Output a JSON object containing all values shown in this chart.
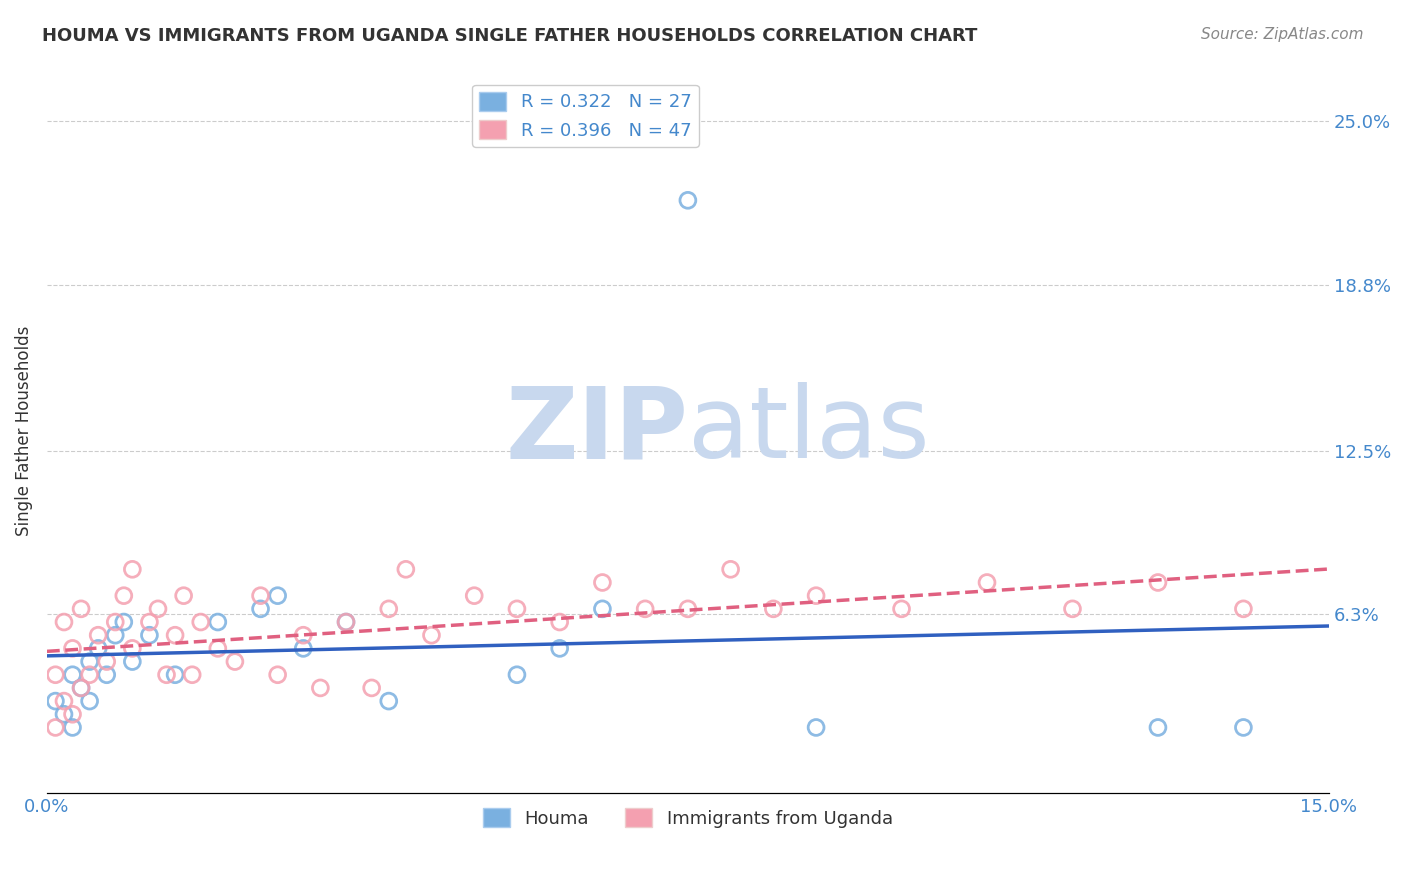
{
  "title": "HOUMA VS IMMIGRANTS FROM UGANDA SINGLE FATHER HOUSEHOLDS CORRELATION CHART",
  "source": "Source: ZipAtlas.com",
  "ylabel": "Single Father Households",
  "ytick_labels": [
    "25.0%",
    "18.8%",
    "12.5%",
    "6.3%"
  ],
  "ytick_values": [
    0.25,
    0.188,
    0.125,
    0.063
  ],
  "xlim": [
    0.0,
    0.15
  ],
  "ylim": [
    -0.005,
    0.27
  ],
  "houma_color": "#7ab0e0",
  "uganda_color": "#f4a0b0",
  "houma_line_color": "#3060c0",
  "uganda_line_color": "#e06080",
  "legend_houma_R": "R = 0.322",
  "legend_houma_N": "N = 27",
  "legend_uganda_R": "R = 0.396",
  "legend_uganda_N": "N = 47",
  "houma_scatter_x": [
    0.001,
    0.002,
    0.003,
    0.003,
    0.004,
    0.005,
    0.005,
    0.006,
    0.007,
    0.008,
    0.009,
    0.01,
    0.012,
    0.015,
    0.02,
    0.025,
    0.027,
    0.03,
    0.035,
    0.04,
    0.055,
    0.06,
    0.065,
    0.075,
    0.09,
    0.13,
    0.14
  ],
  "houma_scatter_y": [
    0.03,
    0.025,
    0.02,
    0.04,
    0.035,
    0.03,
    0.045,
    0.05,
    0.04,
    0.055,
    0.06,
    0.045,
    0.055,
    0.04,
    0.06,
    0.065,
    0.07,
    0.05,
    0.06,
    0.03,
    0.04,
    0.05,
    0.065,
    0.22,
    0.02,
    0.02,
    0.02
  ],
  "uganda_scatter_x": [
    0.001,
    0.001,
    0.002,
    0.002,
    0.003,
    0.003,
    0.004,
    0.004,
    0.005,
    0.006,
    0.007,
    0.008,
    0.009,
    0.01,
    0.01,
    0.012,
    0.013,
    0.014,
    0.015,
    0.016,
    0.017,
    0.018,
    0.02,
    0.022,
    0.025,
    0.027,
    0.03,
    0.032,
    0.035,
    0.038,
    0.04,
    0.042,
    0.045,
    0.05,
    0.055,
    0.06,
    0.065,
    0.07,
    0.075,
    0.08,
    0.085,
    0.09,
    0.1,
    0.11,
    0.12,
    0.13,
    0.14
  ],
  "uganda_scatter_y": [
    0.02,
    0.04,
    0.03,
    0.06,
    0.025,
    0.05,
    0.035,
    0.065,
    0.04,
    0.055,
    0.045,
    0.06,
    0.07,
    0.05,
    0.08,
    0.06,
    0.065,
    0.04,
    0.055,
    0.07,
    0.04,
    0.06,
    0.05,
    0.045,
    0.07,
    0.04,
    0.055,
    0.035,
    0.06,
    0.035,
    0.065,
    0.08,
    0.055,
    0.07,
    0.065,
    0.06,
    0.075,
    0.065,
    0.065,
    0.08,
    0.065,
    0.07,
    0.065,
    0.075,
    0.065,
    0.075,
    0.065
  ],
  "background_color": "#ffffff",
  "watermark_zip": "ZIP",
  "watermark_atlas": "atlas",
  "watermark_color_zip": "#c8d8ee",
  "watermark_color_atlas": "#c8d8ee"
}
